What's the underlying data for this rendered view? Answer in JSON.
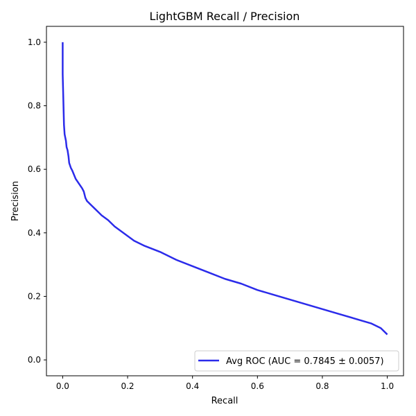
{
  "chart_data": {
    "type": "line",
    "title": "LightGBM Recall / Precision",
    "xlabel": "Recall",
    "ylabel": "Precision",
    "xlim": [
      -0.05,
      1.05
    ],
    "ylim": [
      -0.05,
      1.05
    ],
    "x_ticks": [
      0.0,
      0.2,
      0.4,
      0.6,
      0.8,
      1.0
    ],
    "x_tick_labels": [
      "0.0",
      "0.2",
      "0.4",
      "0.6",
      "0.8",
      "1.0"
    ],
    "y_ticks": [
      0.0,
      0.2,
      0.4,
      0.6,
      0.8,
      1.0
    ],
    "y_tick_labels": [
      "0.0",
      "0.2",
      "0.4",
      "0.6",
      "0.8",
      "1.0"
    ],
    "grid": false,
    "legend_position": "lower right",
    "series": [
      {
        "name": "Avg ROC (AUC = 0.7845 ± 0.0057)",
        "color": "#2b2bea",
        "x": [
          0.0,
          0.0,
          0.0005,
          0.001,
          0.002,
          0.003,
          0.004,
          0.006,
          0.008,
          0.01,
          0.012,
          0.015,
          0.018,
          0.02,
          0.025,
          0.03,
          0.04,
          0.05,
          0.06,
          0.065,
          0.07,
          0.075,
          0.08,
          0.09,
          0.1,
          0.11,
          0.12,
          0.14,
          0.16,
          0.18,
          0.2,
          0.22,
          0.25,
          0.3,
          0.35,
          0.4,
          0.45,
          0.5,
          0.55,
          0.6,
          0.65,
          0.7,
          0.75,
          0.8,
          0.85,
          0.9,
          0.95,
          0.98,
          1.0
        ],
        "y": [
          1.0,
          0.9,
          0.88,
          0.86,
          0.82,
          0.78,
          0.74,
          0.71,
          0.7,
          0.69,
          0.67,
          0.66,
          0.64,
          0.62,
          0.605,
          0.595,
          0.57,
          0.555,
          0.54,
          0.53,
          0.51,
          0.5,
          0.495,
          0.485,
          0.475,
          0.465,
          0.455,
          0.44,
          0.42,
          0.405,
          0.39,
          0.375,
          0.36,
          0.34,
          0.315,
          0.295,
          0.275,
          0.255,
          0.24,
          0.22,
          0.205,
          0.19,
          0.175,
          0.16,
          0.145,
          0.13,
          0.115,
          0.1,
          0.08
        ]
      }
    ]
  }
}
